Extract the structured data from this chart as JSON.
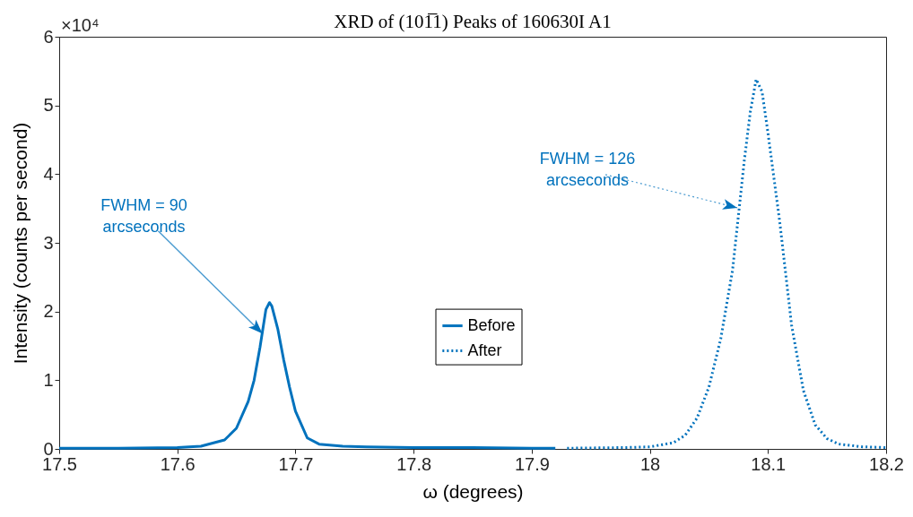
{
  "chart_data": {
    "type": "line",
    "title": "XRD of (101̅1) Peaks of 160630I A1",
    "xlabel": "ω (degrees)",
    "ylabel": "Intensity (counts per second)",
    "xlim": [
      17.5,
      18.2
    ],
    "xticks": [
      17.5,
      17.6,
      17.7,
      17.8,
      17.9,
      18,
      18.1,
      18.2
    ],
    "ylim": [
      0,
      6
    ],
    "yticks": [
      0,
      1,
      2,
      3,
      4,
      5,
      6
    ],
    "grid": false,
    "legend": "bottom",
    "marker": "none",
    "series": [
      {
        "name": "Before",
        "color": "#0072bd",
        "line_style": "solid",
        "x": [
          17.5,
          17.55,
          17.6,
          17.62,
          17.64,
          17.65,
          17.66,
          17.665,
          17.67,
          17.675,
          17.678,
          17.68,
          17.685,
          17.69,
          17.695,
          17.7,
          17.71,
          17.72,
          17.74,
          17.76,
          17.8,
          17.85,
          17.9,
          17.92
        ],
        "values": [
          0.01,
          0.01,
          0.02,
          0.04,
          0.13,
          0.3,
          0.69,
          1.0,
          1.48,
          2.03,
          2.13,
          2.08,
          1.75,
          1.3,
          0.9,
          0.55,
          0.16,
          0.07,
          0.04,
          0.03,
          0.02,
          0.02,
          0.01,
          0.01
        ]
      },
      {
        "name": "After",
        "color": "#0072bd",
        "line_style": "dotted",
        "x": [
          17.93,
          17.98,
          18.0,
          18.02,
          18.03,
          18.04,
          18.05,
          18.06,
          18.07,
          18.08,
          18.085,
          18.09,
          18.095,
          18.1,
          18.11,
          18.12,
          18.13,
          18.14,
          18.15,
          18.16,
          18.18,
          18.2
        ],
        "values": [
          0.01,
          0.02,
          0.03,
          0.09,
          0.2,
          0.45,
          0.9,
          1.6,
          2.6,
          4.2,
          4.9,
          5.38,
          5.2,
          4.6,
          3.3,
          1.8,
          0.85,
          0.35,
          0.15,
          0.07,
          0.03,
          0.02
        ]
      }
    ],
    "annotations": [
      "×10⁴",
      {
        "text": "FWHM = 90\narcseconds",
        "x": 17.672,
        "y": 1.68
      },
      {
        "text": "FWHM = 126\narcseconds",
        "x": 18.074,
        "y": 3.51
      }
    ]
  }
}
